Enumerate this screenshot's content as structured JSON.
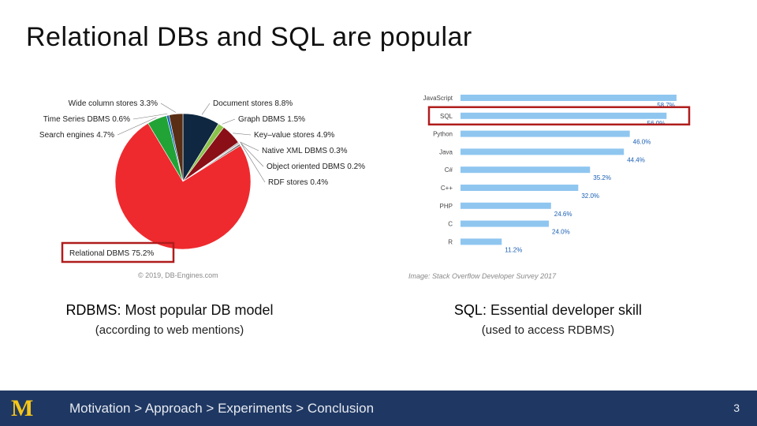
{
  "slide": {
    "title": "Relational DBs and SQL are popular"
  },
  "chart_data": [
    {
      "type": "pie",
      "title": "",
      "credit": "© 2019, DB-Engines.com",
      "categories": [
        "Relational DBMS",
        "Document stores",
        "Key-value stores",
        "Search engines",
        "Wide column stores",
        "Graph DBMS",
        "Time Series DBMS",
        "RDF stores",
        "Native XML DBMS",
        "Object oriented DBMS"
      ],
      "values": [
        75.2,
        8.8,
        4.9,
        4.7,
        3.3,
        1.5,
        0.6,
        0.4,
        0.3,
        0.2
      ],
      "labels": [
        "Relational DBMS 75.2%",
        "Document stores 8.8%",
        "Key–value stores 4.9%",
        "Search engines 4.7%",
        "Wide column stores 3.3%",
        "Graph DBMS 1.5%",
        "Time Series DBMS 0.6%",
        "RDF stores 0.4%",
        "Native XML DBMS 0.3%",
        "Object oriented DBMS 0.2%"
      ],
      "colors": [
        "#ee2a2e",
        "#0f2740",
        "#8a0f17",
        "#21a336",
        "#5a2e14",
        "#8bc34a",
        "#1565c0",
        "#666666",
        "#999999",
        "#bdbdbd"
      ],
      "highlight": "Relational DBMS"
    },
    {
      "type": "bar",
      "orientation": "horizontal",
      "credit": "Image: Stack Overflow Developer Survey 2017",
      "categories": [
        "JavaScript",
        "SQL",
        "Python",
        "Java",
        "C#",
        "C++",
        "PHP",
        "C",
        "R"
      ],
      "values": [
        58.7,
        56.0,
        46.0,
        44.4,
        35.2,
        32.0,
        24.6,
        24.0,
        11.2
      ],
      "value_labels": [
        "58.7%",
        "56.0%",
        "46.0%",
        "44.4%",
        "35.2%",
        "32.0%",
        "24.6%",
        "24.0%",
        "11.2%"
      ],
      "xlim": [
        0,
        60
      ],
      "bar_color": "#8fc6f0",
      "highlight": "SQL"
    }
  ],
  "captions": {
    "left": {
      "lead": "RDBMS:",
      "text": " Most popular DB model",
      "sub": "(according to web mentions)"
    },
    "right": {
      "lead": "SQL:",
      "text": " Essential developer skill",
      "sub": "(used to access RDBMS)"
    }
  },
  "footer": {
    "logo": "M",
    "breadcrumb": "Motivation > Approach > Experiments > Conclusion",
    "page_number": "3"
  },
  "colors": {
    "highlight_box": "#b01c1c",
    "footer_bg": "#1f3863",
    "logo": "#f5c518"
  }
}
